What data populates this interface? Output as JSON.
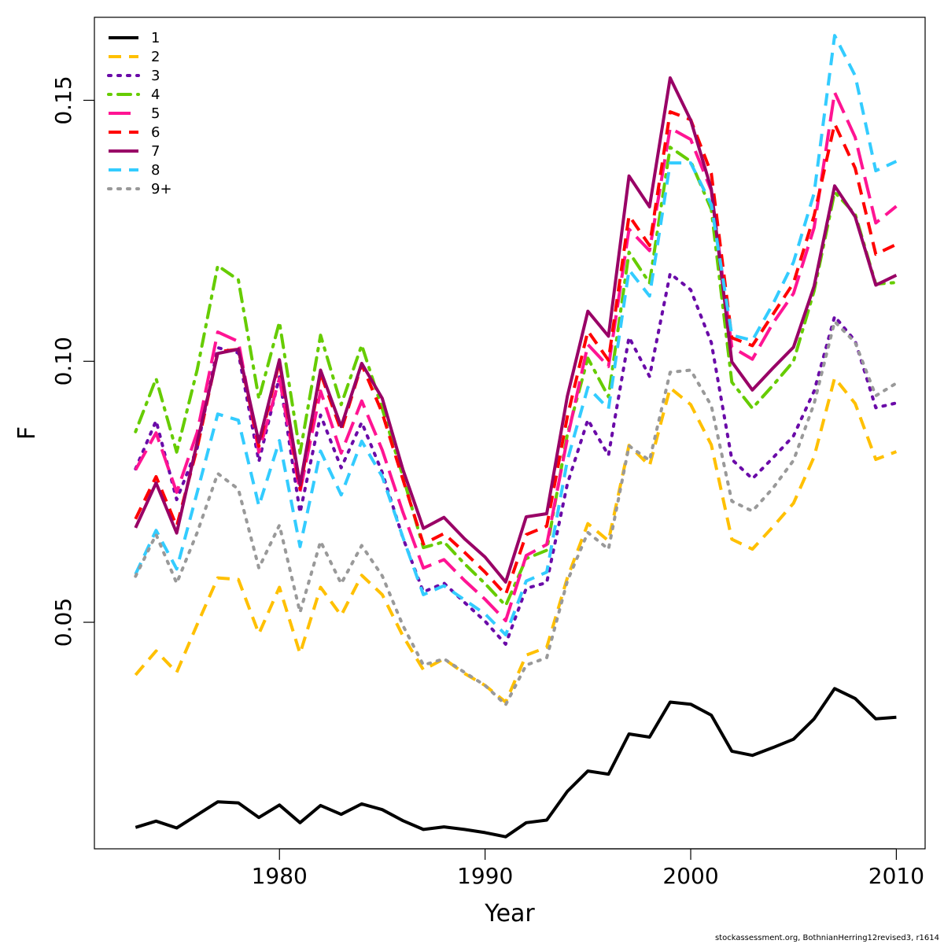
{
  "chart_data": {
    "type": "line",
    "xlabel": "Year",
    "ylabel": "F",
    "xlim": [
      1971.0,
      2011.4
    ],
    "ylim": [
      0.0066,
      0.1659
    ],
    "xticks": [
      1980,
      1990,
      2000,
      2010
    ],
    "yticks": [
      0.05,
      0.1,
      0.15
    ],
    "ytick_labels": [
      "0.05",
      "0.10",
      "0.15"
    ],
    "grid": false,
    "legend_position": "top-left",
    "x": [
      1973,
      1974,
      1975,
      1976,
      1977,
      1978,
      1979,
      1980,
      1981,
      1982,
      1983,
      1984,
      1985,
      1986,
      1987,
      1988,
      1989,
      1990,
      1991,
      1992,
      1993,
      1994,
      1995,
      1996,
      1997,
      1998,
      1999,
      2000,
      2001,
      2002,
      2003,
      2004,
      2005,
      2006,
      2007,
      2008,
      2009,
      2010
    ],
    "series": [
      {
        "name": "1",
        "color": "#000000",
        "dash": "solid",
        "values": [
          0.0107,
          0.0119,
          0.0106,
          0.0131,
          0.0156,
          0.0154,
          0.0126,
          0.015,
          0.0116,
          0.0149,
          0.0132,
          0.0152,
          0.0141,
          0.012,
          0.0103,
          0.0108,
          0.0103,
          0.0097,
          0.0089,
          0.0116,
          0.0121,
          0.0176,
          0.0215,
          0.0209,
          0.0286,
          0.028,
          0.0347,
          0.0343,
          0.0322,
          0.0253,
          0.0245,
          0.026,
          0.0276,
          0.0315,
          0.0373,
          0.0354,
          0.0315,
          0.0318
        ]
      },
      {
        "name": "2",
        "color": "#ffc000",
        "dash": "dashed",
        "values": [
          0.0399,
          0.0445,
          0.0404,
          0.0496,
          0.0585,
          0.0582,
          0.0478,
          0.0567,
          0.044,
          0.0567,
          0.0513,
          0.059,
          0.0553,
          0.0474,
          0.0409,
          0.043,
          0.0402,
          0.0379,
          0.0347,
          0.0437,
          0.0452,
          0.0585,
          0.0689,
          0.0656,
          0.0839,
          0.08,
          0.0949,
          0.0917,
          0.084,
          0.0659,
          0.064,
          0.0683,
          0.0728,
          0.0817,
          0.0968,
          0.0919,
          0.0812,
          0.0827
        ]
      },
      {
        "name": "3",
        "color": "#6a0aa8",
        "dash": "dotted",
        "values": [
          0.0794,
          0.0886,
          0.0735,
          0.0834,
          0.1026,
          0.1016,
          0.0808,
          0.097,
          0.071,
          0.0897,
          0.0796,
          0.0883,
          0.0787,
          0.0662,
          0.0558,
          0.0575,
          0.0538,
          0.0502,
          0.0458,
          0.0565,
          0.0576,
          0.0765,
          0.0888,
          0.082,
          0.1046,
          0.0971,
          0.1168,
          0.1137,
          0.1036,
          0.0812,
          0.0775,
          0.0815,
          0.0857,
          0.0943,
          0.1086,
          0.1039,
          0.0911,
          0.092
        ]
      },
      {
        "name": "4",
        "color": "#66cc00",
        "dash": "dotdash",
        "values": [
          0.0865,
          0.0967,
          0.0826,
          0.0984,
          0.1183,
          0.1156,
          0.0928,
          0.1075,
          0.0824,
          0.105,
          0.0917,
          0.1031,
          0.0909,
          0.078,
          0.0643,
          0.0654,
          0.0612,
          0.0574,
          0.0532,
          0.0622,
          0.0638,
          0.086,
          0.1006,
          0.0932,
          0.1209,
          0.115,
          0.141,
          0.1383,
          0.1291,
          0.096,
          0.091,
          0.0954,
          0.1,
          0.1135,
          0.1324,
          0.1282,
          0.1148,
          0.1151
        ]
      },
      {
        "name": "5",
        "color": "#ff1493",
        "dash": "longdash",
        "values": [
          0.0792,
          0.0863,
          0.0749,
          0.0864,
          0.1056,
          0.1038,
          0.0826,
          0.0967,
          0.075,
          0.0943,
          0.0824,
          0.0924,
          0.083,
          0.0711,
          0.0604,
          0.062,
          0.058,
          0.0544,
          0.0503,
          0.0628,
          0.0649,
          0.0852,
          0.1032,
          0.099,
          0.1253,
          0.1212,
          0.1447,
          0.1425,
          0.1327,
          0.1027,
          0.1004,
          0.1073,
          0.113,
          0.1256,
          0.1515,
          0.1429,
          0.1265,
          0.1297
        ]
      },
      {
        "name": "6",
        "color": "#ff0000",
        "dash": "dashed",
        "values": [
          0.0698,
          0.0779,
          0.0684,
          0.0834,
          0.1018,
          0.1023,
          0.0837,
          0.0999,
          0.0755,
          0.0977,
          0.0867,
          0.0994,
          0.0901,
          0.0774,
          0.065,
          0.067,
          0.0634,
          0.0596,
          0.0553,
          0.0668,
          0.0684,
          0.0894,
          0.1058,
          0.1002,
          0.1279,
          0.1222,
          0.1478,
          0.1463,
          0.136,
          0.1045,
          0.103,
          0.109,
          0.115,
          0.1279,
          0.1455,
          0.137,
          0.1205,
          0.1224
        ]
      },
      {
        "name": "7",
        "color": "#990066",
        "dash": "solid",
        "values": [
          0.0681,
          0.0767,
          0.0671,
          0.0845,
          0.1015,
          0.1023,
          0.0845,
          0.1003,
          0.0763,
          0.0983,
          0.0875,
          0.0996,
          0.0929,
          0.0793,
          0.068,
          0.0701,
          0.066,
          0.0625,
          0.0577,
          0.0702,
          0.0708,
          0.0933,
          0.1096,
          0.1048,
          0.1355,
          0.1296,
          0.1543,
          0.1462,
          0.133,
          0.0999,
          0.0945,
          0.0987,
          0.1027,
          0.1144,
          0.1336,
          0.1277,
          0.1146,
          0.1165
        ]
      },
      {
        "name": "8",
        "color": "#33ccff",
        "dash": "dashed",
        "values": [
          0.0592,
          0.0676,
          0.0602,
          0.0749,
          0.0899,
          0.0887,
          0.0723,
          0.0848,
          0.0645,
          0.0828,
          0.0744,
          0.0847,
          0.0779,
          0.0663,
          0.0553,
          0.057,
          0.0543,
          0.0516,
          0.0476,
          0.0579,
          0.0596,
          0.081,
          0.095,
          0.0909,
          0.1175,
          0.1125,
          0.138,
          0.138,
          0.13,
          0.105,
          0.104,
          0.111,
          0.119,
          0.1322,
          0.1624,
          0.1547,
          0.1365,
          0.1383
        ]
      },
      {
        "name": "9+",
        "color": "#999999",
        "dash": "dotted",
        "values": [
          0.0588,
          0.0668,
          0.0575,
          0.0672,
          0.0785,
          0.0755,
          0.0604,
          0.0686,
          0.0519,
          0.0655,
          0.0574,
          0.0647,
          0.0589,
          0.0494,
          0.0418,
          0.043,
          0.0404,
          0.0379,
          0.0342,
          0.0418,
          0.0432,
          0.0579,
          0.0672,
          0.064,
          0.0838,
          0.081,
          0.0979,
          0.0983,
          0.0915,
          0.0732,
          0.0713,
          0.0757,
          0.081,
          0.0919,
          0.1076,
          0.1036,
          0.0934,
          0.0958
        ]
      }
    ]
  },
  "footer": "stockassessment.org, BothnianHerring12revised3, r1614"
}
